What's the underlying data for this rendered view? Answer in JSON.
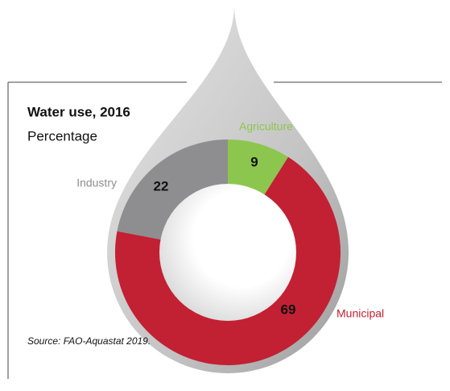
{
  "chart_data": {
    "type": "donut",
    "title": "Water use, 2016",
    "subtitle": "Percentage",
    "categories": [
      "Agriculture",
      "Municipal",
      "Industry"
    ],
    "values": [
      9,
      69,
      22
    ],
    "colors": [
      "#8dc64f",
      "#c22033",
      "#8e8e90"
    ],
    "source": "Source: FAO-Aquastat 2019."
  }
}
